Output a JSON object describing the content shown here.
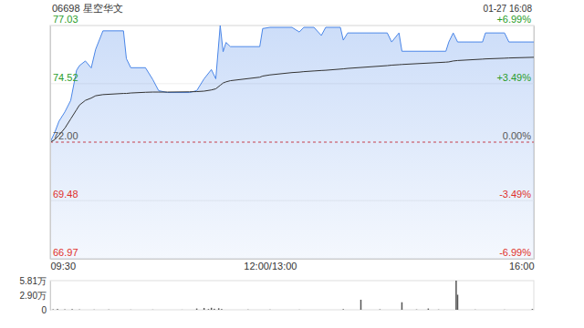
{
  "chart_data": [
    {
      "type": "line",
      "title": "06698 星空华文",
      "subtitle": "01-27 16:08",
      "x": [
        0,
        3,
        6,
        10,
        14,
        18,
        20,
        24,
        28,
        31,
        36,
        50,
        52,
        55,
        65,
        70,
        74,
        80,
        95,
        100,
        105,
        110,
        113,
        116,
        118,
        120,
        123,
        143,
        145,
        150,
        165,
        170,
        173,
        180,
        185,
        188,
        198,
        200,
        203,
        230,
        233,
        238,
        240,
        270,
        272,
        275,
        278,
        295,
        297,
        310,
        313,
        330
      ],
      "series": [
        {
          "type": "area",
          "color": "#4a86e8",
          "values": [
            72.0,
            72.4,
            72.9,
            73.3,
            73.8,
            75.1,
            75.3,
            75.5,
            75.2,
            76.0,
            76.8,
            76.8,
            75.6,
            75.21,
            75.21,
            74.7,
            74.22,
            74.14,
            74.14,
            74.22,
            74.73,
            75.13,
            74.73,
            77.03,
            75.9,
            76.3,
            76.12,
            76.12,
            76.9,
            76.95,
            76.95,
            76.75,
            76.95,
            76.95,
            76.6,
            76.95,
            76.95,
            76.4,
            76.71,
            76.71,
            76.32,
            76.71,
            75.92,
            75.92,
            76.32,
            76.71,
            76.32,
            76.32,
            76.71,
            76.71,
            76.32,
            76.32
          ]
        },
        {
          "type": "line",
          "color": "#333333",
          "values": [
            72.0,
            72.1,
            72.3,
            72.6,
            73.0,
            73.4,
            73.6,
            73.8,
            73.9,
            74.0,
            74.05,
            74.1,
            74.1,
            74.12,
            74.15,
            74.16,
            74.16,
            74.16,
            74.17,
            74.18,
            74.2,
            74.25,
            74.3,
            74.45,
            74.55,
            74.6,
            74.65,
            74.8,
            74.85,
            74.9,
            75.0,
            75.02,
            75.04,
            75.07,
            75.09,
            75.1,
            75.15,
            75.16,
            75.18,
            75.3,
            75.32,
            75.34,
            75.35,
            75.45,
            75.46,
            75.5,
            75.52,
            75.58,
            75.59,
            75.62,
            75.63,
            75.66
          ]
        }
      ],
      "xlim": [
        0,
        330
      ],
      "xticks": [
        {
          "value": 0,
          "label": "09:30"
        },
        {
          "value": 150,
          "label": "12:00/13:00"
        },
        {
          "value": 330,
          "label": "16:00"
        }
      ],
      "ylim": [
        66.97,
        77.03
      ],
      "yticks": [
        77.03,
        74.52,
        {
          "value": 72.0,
          "label": "72.00"
        },
        69.48,
        66.97
      ],
      "y2lim": [
        -6.99,
        6.99
      ],
      "y2ticks": [
        {
          "value": 6.99,
          "label": "+6.99%"
        },
        {
          "value": 3.49,
          "label": "+3.49%"
        },
        {
          "value": 0,
          "label": "0.00%"
        },
        {
          "value": -3.49,
          "label": "-3.49%"
        },
        {
          "value": -6.99,
          "label": "-6.99%"
        }
      ],
      "grid": true
    },
    {
      "type": "bar",
      "x": [
        0,
        2,
        5,
        10,
        15,
        20,
        30,
        40,
        55,
        70,
        90,
        100,
        105,
        108,
        110,
        112,
        115,
        117,
        135,
        150,
        170,
        200,
        212,
        225,
        240,
        250,
        258,
        265,
        277,
        278,
        290,
        310,
        329
      ],
      "values": [
        2500,
        900,
        1500,
        800,
        1200,
        600,
        400,
        500,
        300,
        300,
        200,
        2500,
        3500,
        1500,
        4000,
        2000,
        3000,
        1500,
        500,
        400,
        300,
        1200,
        20000,
        800,
        15000,
        600,
        2500,
        500,
        58100,
        30000,
        400,
        300,
        1500
      ],
      "color": "#555555",
      "xlim": [
        0,
        330
      ],
      "ylim": [
        0,
        58100
      ],
      "yticks": [
        {
          "value": 58100,
          "label": "5.81万"
        },
        {
          "value": 29000,
          "label": "2.90万"
        },
        0
      ],
      "tick_labels": "y"
    }
  ]
}
